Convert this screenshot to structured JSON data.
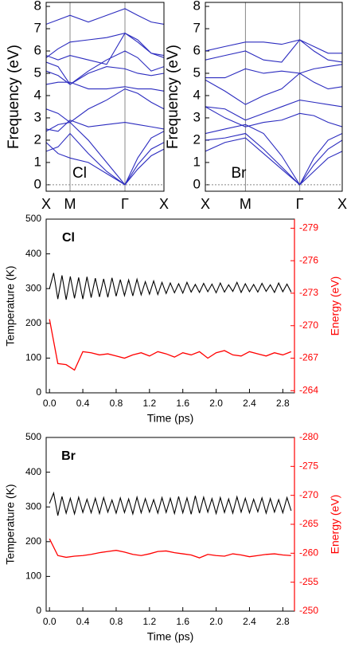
{
  "chart_data": [
    {
      "type": "line",
      "ylabel": "Frequency (eV)",
      "annotation": "Cl",
      "zero_line": true,
      "xlim": [
        0,
        1.48
      ],
      "xticks": [
        {
          "value": 0,
          "label": "X"
        },
        {
          "value": 0.3,
          "label": "M"
        },
        {
          "value": 0.99,
          "label": "Γ"
        },
        {
          "value": 1.48,
          "label": "X"
        }
      ],
      "ylim": [
        -0.29,
        8.18
      ],
      "yticks": [
        0,
        1,
        2,
        3,
        4,
        5,
        6,
        7,
        8
      ],
      "x": [
        0,
        0.15,
        0.3,
        0.53,
        0.76,
        0.99,
        1.15,
        1.32,
        1.48
      ],
      "series": [
        {
          "color": "#2b2bbf",
          "values": [
            1.5,
            1.7,
            2.3,
            1.4,
            0.6,
            0,
            0.7,
            1.3,
            1.6
          ]
        },
        {
          "color": "#2b2bbf",
          "values": [
            1.9,
            1.4,
            1.2,
            1.0,
            0.5,
            0,
            0.9,
            1.6,
            1.9
          ]
        },
        {
          "color": "#2b2bbf",
          "values": [
            2.4,
            2.7,
            2.8,
            2.0,
            1.0,
            0,
            1.2,
            2.1,
            2.4
          ]
        },
        {
          "color": "#2b2bbf",
          "values": [
            2.5,
            2.4,
            2.9,
            2.6,
            2.7,
            2.8,
            2.7,
            2.6,
            2.5
          ]
        },
        {
          "color": "#2b2bbf",
          "values": [
            3.4,
            3.2,
            2.8,
            3.4,
            3.8,
            4.3,
            4.1,
            3.7,
            3.4
          ]
        },
        {
          "color": "#2b2bbf",
          "values": [
            4.5,
            4.6,
            4.6,
            4.3,
            4.3,
            4.4,
            4.3,
            4.3,
            4.2
          ]
        },
        {
          "color": "#2b2bbf",
          "values": [
            5.1,
            4.9,
            4.5,
            5.0,
            5.3,
            5.2,
            5.0,
            4.9,
            5.0
          ]
        },
        {
          "color": "#2b2bbf",
          "values": [
            5.5,
            5.3,
            4.5,
            5.1,
            5.6,
            6.0,
            5.7,
            5.1,
            5.3
          ]
        },
        {
          "color": "#2b2bbf",
          "values": [
            5.8,
            5.6,
            5.8,
            5.6,
            5.4,
            6.8,
            6.5,
            5.9,
            5.8
          ]
        },
        {
          "color": "#2b2bbf",
          "values": [
            5.7,
            6.1,
            6.4,
            6.5,
            6.6,
            6.8,
            6.4,
            5.9,
            5.7
          ]
        },
        {
          "color": "#2b2bbf",
          "values": [
            7.2,
            7.4,
            7.6,
            7.3,
            7.6,
            7.9,
            7.6,
            7.3,
            7.2
          ]
        }
      ]
    },
    {
      "type": "line",
      "ylabel": "Frequency (eV)",
      "annotation": "Br",
      "zero_line": true,
      "xlim": [
        0,
        1.74
      ],
      "xticks": [
        {
          "value": 0,
          "label": "X"
        },
        {
          "value": 0.51,
          "label": "M"
        },
        {
          "value": 1.2,
          "label": "Γ"
        },
        {
          "value": 1.74,
          "label": "X"
        }
      ],
      "ylim": [
        -0.29,
        8.18
      ],
      "yticks": [
        0,
        1,
        2,
        3,
        4,
        5,
        6,
        7,
        8
      ],
      "x": [
        0,
        0.25,
        0.51,
        0.74,
        0.97,
        1.2,
        1.38,
        1.56,
        1.74
      ],
      "series": [
        {
          "color": "#2b2bbf",
          "values": [
            1.5,
            1.9,
            2.1,
            1.4,
            0.7,
            0,
            0.6,
            1.2,
            1.5
          ]
        },
        {
          "color": "#2b2bbf",
          "values": [
            2.0,
            2.1,
            2.3,
            1.6,
            0.8,
            0,
            0.9,
            1.6,
            2.0
          ]
        },
        {
          "color": "#2b2bbf",
          "values": [
            2.3,
            2.5,
            2.7,
            2.3,
            1.3,
            0,
            1.2,
            2.0,
            2.3
          ]
        },
        {
          "color": "#2b2bbf",
          "values": [
            3.5,
            3.0,
            2.6,
            2.8,
            2.9,
            3.2,
            3.1,
            2.8,
            2.6
          ]
        },
        {
          "color": "#2b2bbf",
          "values": [
            3.5,
            3.4,
            2.9,
            3.2,
            3.5,
            3.8,
            3.7,
            3.6,
            3.5
          ]
        },
        {
          "color": "#2b2bbf",
          "values": [
            4.7,
            4.2,
            3.6,
            4.0,
            4.3,
            5.0,
            4.6,
            4.3,
            4.4
          ]
        },
        {
          "color": "#2b2bbf",
          "values": [
            4.8,
            4.8,
            5.2,
            5.0,
            5.1,
            5.0,
            5.2,
            5.3,
            5.4
          ]
        },
        {
          "color": "#2b2bbf",
          "values": [
            5.6,
            5.8,
            6.0,
            5.6,
            5.5,
            6.5,
            6.0,
            5.6,
            5.5
          ]
        },
        {
          "color": "#2b2bbf",
          "values": [
            6.0,
            6.2,
            6.4,
            6.4,
            6.3,
            6.5,
            6.2,
            5.9,
            5.9
          ]
        }
      ]
    },
    {
      "type": "line",
      "annotation": "Cl",
      "xlabel": "Time (ps)",
      "ylabel": "Temperature (K)",
      "y2label": "Energy (eV)",
      "xlim": [
        -0.04,
        2.94
      ],
      "xticks": [
        {
          "value": 0,
          "label": "0.0"
        },
        0.4,
        0.8,
        1.2,
        1.6,
        {
          "value": 2,
          "label": "2.0"
        },
        2.4,
        2.8
      ],
      "ylim": [
        0,
        500
      ],
      "yticks": [
        0,
        100,
        200,
        300,
        400,
        500
      ],
      "y2lim": [
        -263.8,
        -279.84
      ],
      "y2ticks": [
        -279,
        -276,
        -273,
        -270,
        -267,
        -264
      ],
      "series": [
        {
          "color": "#000000",
          "x": [
            0,
            0.05,
            0.1,
            0.15,
            0.2,
            0.25,
            0.3,
            0.35,
            0.4,
            0.45,
            0.5,
            0.55,
            0.6,
            0.65,
            0.7,
            0.75,
            0.8,
            0.85,
            0.9,
            0.95,
            1,
            1.05,
            1.1,
            1.15,
            1.2,
            1.25,
            1.3,
            1.35,
            1.4,
            1.45,
            1.5,
            1.55,
            1.6,
            1.65,
            1.7,
            1.75,
            1.8,
            1.85,
            1.9,
            1.95,
            2,
            2.05,
            2.1,
            2.15,
            2.2,
            2.25,
            2.3,
            2.35,
            2.4,
            2.45,
            2.5,
            2.55,
            2.6,
            2.65,
            2.7,
            2.75,
            2.8,
            2.85,
            2.9
          ],
          "values": [
            300,
            345,
            270,
            338,
            268,
            335,
            272,
            332,
            270,
            334,
            274,
            330,
            276,
            328,
            275,
            331,
            278,
            326,
            280,
            325,
            279,
            327,
            282,
            320,
            284,
            322,
            283,
            318,
            286,
            316,
            288,
            314,
            287,
            318,
            290,
            312,
            289,
            315,
            291,
            313,
            288,
            316,
            290,
            311,
            292,
            318,
            289,
            314,
            291,
            312,
            290,
            315,
            292,
            311,
            289,
            316,
            291,
            313,
            290
          ]
        },
        {
          "color": "#ff0000",
          "axis": "y2",
          "x": [
            0,
            0.1,
            0.2,
            0.3,
            0.4,
            0.5,
            0.6,
            0.7,
            0.8,
            0.9,
            1,
            1.1,
            1.2,
            1.3,
            1.4,
            1.5,
            1.6,
            1.7,
            1.8,
            1.9,
            2,
            2.1,
            2.2,
            2.3,
            2.4,
            2.5,
            2.6,
            2.7,
            2.8,
            2.9
          ],
          "values": [
            -270.6,
            -266.5,
            -266.4,
            -265.9,
            -267.6,
            -267.5,
            -267.3,
            -267.4,
            -267.2,
            -267.0,
            -267.3,
            -267.5,
            -267.2,
            -267.6,
            -267.4,
            -267.1,
            -267.5,
            -267.3,
            -267.6,
            -267.0,
            -267.5,
            -267.7,
            -267.3,
            -267.2,
            -267.6,
            -267.4,
            -267.2,
            -267.5,
            -267.3,
            -267.6
          ]
        }
      ]
    },
    {
      "type": "line",
      "annotation": "Br",
      "xlabel": "Time (ps)",
      "ylabel": "Temperature (K)",
      "y2label": "Energy (eV)",
      "xlim": [
        -0.04,
        2.94
      ],
      "xticks": [
        {
          "value": 0,
          "label": "0.0"
        },
        0.4,
        0.8,
        1.2,
        1.6,
        {
          "value": 2,
          "label": "2.0"
        },
        2.4,
        2.8
      ],
      "ylim": [
        0,
        500
      ],
      "yticks": [
        0,
        100,
        200,
        300,
        400,
        500
      ],
      "y2lim": [
        -250,
        -280
      ],
      "y2ticks": [
        -280,
        -275,
        -270,
        -265,
        -260,
        -255,
        -250
      ],
      "series": [
        {
          "color": "#000000",
          "x": [
            0,
            0.05,
            0.1,
            0.15,
            0.2,
            0.25,
            0.3,
            0.35,
            0.4,
            0.45,
            0.5,
            0.55,
            0.6,
            0.65,
            0.7,
            0.75,
            0.8,
            0.85,
            0.9,
            0.95,
            1,
            1.05,
            1.1,
            1.15,
            1.2,
            1.25,
            1.3,
            1.35,
            1.4,
            1.45,
            1.5,
            1.55,
            1.6,
            1.65,
            1.7,
            1.75,
            1.8,
            1.85,
            1.9,
            1.95,
            2,
            2.05,
            2.1,
            2.15,
            2.2,
            2.25,
            2.3,
            2.35,
            2.4,
            2.45,
            2.5,
            2.55,
            2.6,
            2.65,
            2.7,
            2.75,
            2.8,
            2.85,
            2.9
          ],
          "values": [
            310,
            340,
            275,
            330,
            282,
            325,
            280,
            328,
            284,
            322,
            283,
            325,
            281,
            327,
            285,
            320,
            282,
            326,
            284,
            323,
            280,
            328,
            283,
            324,
            285,
            321,
            282,
            327,
            284,
            325,
            281,
            330,
            283,
            326,
            279,
            332,
            282,
            328,
            285,
            324,
            281,
            327,
            284,
            323,
            282,
            329,
            285,
            325,
            283,
            322,
            286,
            326,
            282,
            324,
            285,
            321,
            283,
            327,
            289
          ]
        },
        {
          "color": "#ff0000",
          "axis": "y2",
          "x": [
            0,
            0.1,
            0.2,
            0.3,
            0.4,
            0.5,
            0.6,
            0.7,
            0.8,
            0.9,
            1,
            1.1,
            1.2,
            1.3,
            1.4,
            1.5,
            1.6,
            1.7,
            1.8,
            1.9,
            2,
            2.1,
            2.2,
            2.3,
            2.4,
            2.5,
            2.6,
            2.7,
            2.8,
            2.9
          ],
          "values": [
            -262.5,
            -259.6,
            -259.3,
            -259.5,
            -259.6,
            -259.8,
            -260.1,
            -260.3,
            -260.5,
            -260.2,
            -259.8,
            -259.6,
            -259.9,
            -260.3,
            -260.4,
            -260.1,
            -259.9,
            -259.7,
            -259.2,
            -259.8,
            -259.6,
            -259.5,
            -259.9,
            -259.7,
            -259.4,
            -259.6,
            -259.8,
            -259.9,
            -259.7,
            -259.6
          ]
        }
      ]
    }
  ]
}
